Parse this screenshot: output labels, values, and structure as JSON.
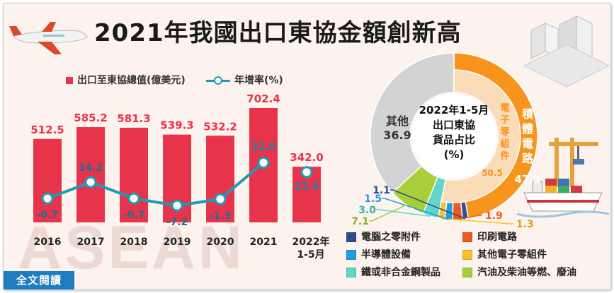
{
  "title": "2021年我國出口東協金額創新高",
  "full_text_button": "全文閱讀",
  "watermark": "ASEAN",
  "colors": {
    "bar": "#e8344a",
    "line": "#1f9bb8",
    "button": "#1f7cc1"
  },
  "icons": {
    "airplane": "airplane-icon",
    "buildings": "buildings-icon",
    "ship": "cargo-ship-icon",
    "crane": "crane-icon"
  },
  "chart_data": [
    {
      "type": "bar",
      "categories": [
        "2016",
        "2017",
        "2018",
        "2019",
        "2020",
        "2021",
        "2022年\n1-5月"
      ],
      "series": [
        {
          "name": "出口至東協總值(億美元)",
          "values": [
            512.5,
            585.2,
            581.3,
            539.3,
            532.2,
            702.4,
            342.0
          ],
          "labels": [
            "512.5",
            "585.2",
            "581.3",
            "539.3",
            "532.2",
            "702.4",
            "342.0"
          ]
        },
        {
          "name": "年增率(%)",
          "type": "line",
          "values": [
            -0.7,
            14.2,
            -0.7,
            -7.2,
            -1.3,
            32.0,
            23.4
          ],
          "labels": [
            "-0.7",
            "14.2",
            "-0.7",
            "-7.2",
            "-1.3",
            "32.0",
            "23.4"
          ]
        }
      ]
    },
    {
      "type": "pie",
      "title": "2022年1-5月\n出口東協\n貨品占比\n(%)",
      "slices": [
        {
          "name": "積體電路",
          "value": 47.3,
          "label": "47.3",
          "color": "#f7941d"
        },
        {
          "name": "電腦之零附件",
          "value": 1.1,
          "label": "1.1",
          "color": "#2d4e8e"
        },
        {
          "name": "印刷電路",
          "value": 1.9,
          "label": "1.9",
          "color": "#ef5b1e"
        },
        {
          "name": "半導體設備",
          "value": 1.5,
          "label": "1.5",
          "color": "#1f9ee0"
        },
        {
          "name": "其他電子零組件",
          "value": 1.3,
          "label": "1.3",
          "color": "#fbbf2a"
        },
        {
          "name": "鐵或非合金鋼製品",
          "value": 3.0,
          "label": "3.0",
          "color": "#5fd6c8"
        },
        {
          "name": "汽油及柴油等燃、廢油",
          "value": 7.1,
          "label": "7.1",
          "color": "#a8cf3a"
        },
        {
          "name": "其他",
          "value": 36.9,
          "label": "36.9",
          "color": "#d3d3d3"
        }
      ],
      "inner_ring": {
        "name": "電子零組件",
        "value": 50.5,
        "label": "50.5"
      },
      "legend": [
        {
          "name": "電腦之零附件",
          "color": "#2d4e8e"
        },
        {
          "name": "印刷電路",
          "color": "#ef5b1e"
        },
        {
          "name": "半導體設備",
          "color": "#1f9ee0"
        },
        {
          "name": "其他電子零組件",
          "color": "#fbbf2a"
        },
        {
          "name": "鐵或非合金鋼製品",
          "color": "#5fd6c8"
        },
        {
          "name": "汽油及柴油等燃、廢油",
          "color": "#a8cf3a"
        }
      ]
    }
  ]
}
